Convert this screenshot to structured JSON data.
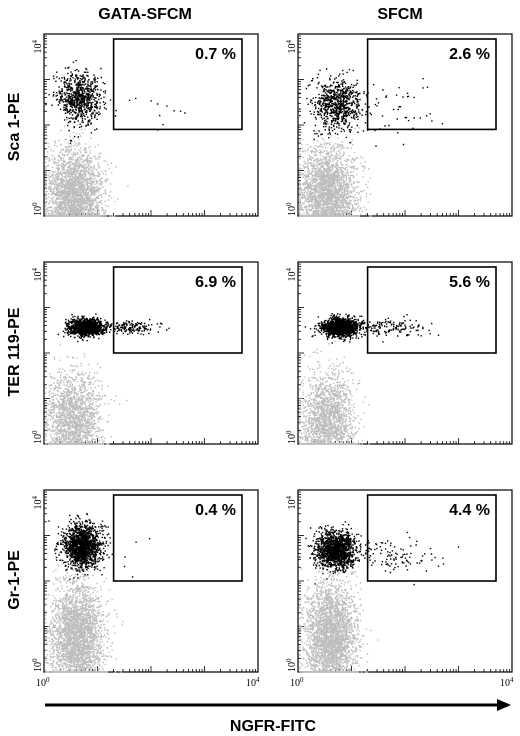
{
  "figure": {
    "column_titles": [
      "GATA-SFCM",
      "SFCM"
    ],
    "row_labels": [
      "Sca 1-PE",
      "TER 119-PE",
      "Gr-1-PE"
    ],
    "x_axis_label": "NGFR-FITC",
    "tick_base": "10",
    "tick_exponents": {
      "low": "0",
      "high": "4"
    },
    "colors": {
      "negative_population": "#bdbdbd",
      "positive_population": "#000000",
      "frame": "#000000"
    }
  },
  "chart_data": [
    {
      "type": "scatter",
      "panel_row": 0,
      "panel_col": 0,
      "xlabel": "",
      "ylabel": "Sca 1-PE",
      "scale": "log",
      "xlim": [
        1,
        10000
      ],
      "ylim": [
        1,
        10000
      ],
      "gate": {
        "x": [
          20,
          10000
        ],
        "y": [
          80,
          10000
        ]
      },
      "gate_percent": "0.7 %",
      "populations": [
        {
          "color": "gray",
          "center": [
            3.5,
            3
          ],
          "spread": [
            0.26,
            0.5
          ],
          "points": 2600
        },
        {
          "color": "black",
          "center": [
            4.5,
            400
          ],
          "spread": [
            0.2,
            0.28
          ],
          "points": 750
        },
        {
          "color": "black",
          "center": [
            80,
            300
          ],
          "spread": [
            0.5,
            0.4
          ],
          "points": 12
        }
      ]
    },
    {
      "type": "scatter",
      "panel_row": 0,
      "panel_col": 1,
      "xlabel": "",
      "ylabel": "",
      "scale": "log",
      "xlim": [
        1,
        10000
      ],
      "ylim": [
        1,
        10000
      ],
      "gate": {
        "x": [
          20,
          10000
        ],
        "y": [
          80,
          10000
        ]
      },
      "gate_percent": "2.6 %",
      "populations": [
        {
          "color": "gray",
          "center": [
            3.5,
            3
          ],
          "spread": [
            0.26,
            0.5
          ],
          "points": 2600
        },
        {
          "color": "black",
          "center": [
            5,
            300
          ],
          "spread": [
            0.22,
            0.28
          ],
          "points": 750
        },
        {
          "color": "black",
          "center": [
            60,
            200
          ],
          "spread": [
            0.45,
            0.35
          ],
          "points": 45
        }
      ]
    },
    {
      "type": "scatter",
      "panel_row": 1,
      "panel_col": 0,
      "xlabel": "",
      "ylabel": "TER 119-PE",
      "scale": "log",
      "xlim": [
        1,
        10000
      ],
      "ylim": [
        1,
        10000
      ],
      "gate": {
        "x": [
          20,
          10000
        ],
        "y": [
          100,
          10000
        ]
      },
      "gate_percent": "6.9 %",
      "populations": [
        {
          "color": "gray",
          "center": [
            3.5,
            3
          ],
          "spread": [
            0.25,
            0.55
          ],
          "points": 1900
        },
        {
          "color": "black",
          "center": [
            6,
            380
          ],
          "spread": [
            0.16,
            0.09
          ],
          "points": 1300
        },
        {
          "color": "black",
          "center": [
            40,
            380
          ],
          "spread": [
            0.25,
            0.07
          ],
          "points": 160
        }
      ]
    },
    {
      "type": "scatter",
      "panel_row": 1,
      "panel_col": 1,
      "xlabel": "",
      "ylabel": "",
      "scale": "log",
      "xlim": [
        1,
        10000
      ],
      "ylim": [
        1,
        10000
      ],
      "gate": {
        "x": [
          20,
          10000
        ],
        "y": [
          100,
          10000
        ]
      },
      "gate_percent": "5.6 %",
      "populations": [
        {
          "color": "gray",
          "center": [
            3.5,
            3
          ],
          "spread": [
            0.25,
            0.55
          ],
          "points": 1900
        },
        {
          "color": "black",
          "center": [
            6,
            380
          ],
          "spread": [
            0.17,
            0.1
          ],
          "points": 1300
        },
        {
          "color": "black",
          "center": [
            55,
            370
          ],
          "spread": [
            0.35,
            0.09
          ],
          "points": 140
        }
      ]
    },
    {
      "type": "scatter",
      "panel_row": 2,
      "panel_col": 0,
      "xlabel": "",
      "ylabel": "Gr-1-PE",
      "scale": "log",
      "xlim": [
        1,
        10000
      ],
      "ylim": [
        1,
        10000
      ],
      "gate": {
        "x": [
          20,
          10000
        ],
        "y": [
          100,
          10000
        ]
      },
      "gate_percent": "0.4 %",
      "populations": [
        {
          "color": "gray",
          "center": [
            4,
            6
          ],
          "spread": [
            0.24,
            0.6
          ],
          "points": 2800
        },
        {
          "color": "black",
          "center": [
            5,
            600
          ],
          "spread": [
            0.18,
            0.24
          ],
          "points": 1500
        },
        {
          "color": "black",
          "center": [
            35,
            250
          ],
          "spread": [
            0.4,
            0.3
          ],
          "points": 8
        }
      ]
    },
    {
      "type": "scatter",
      "panel_row": 2,
      "panel_col": 1,
      "xlabel": "",
      "ylabel": "",
      "scale": "log",
      "xlim": [
        1,
        10000
      ],
      "ylim": [
        1,
        10000
      ],
      "gate": {
        "x": [
          20,
          10000
        ],
        "y": [
          100,
          10000
        ]
      },
      "gate_percent": "4.4 %",
      "populations": [
        {
          "color": "gray",
          "center": [
            4,
            6
          ],
          "spread": [
            0.24,
            0.6
          ],
          "points": 2800
        },
        {
          "color": "black",
          "center": [
            5,
            500
          ],
          "spread": [
            0.18,
            0.2
          ],
          "points": 1400
        },
        {
          "color": "black",
          "center": [
            60,
            350
          ],
          "spread": [
            0.4,
            0.2
          ],
          "points": 110
        }
      ]
    }
  ]
}
